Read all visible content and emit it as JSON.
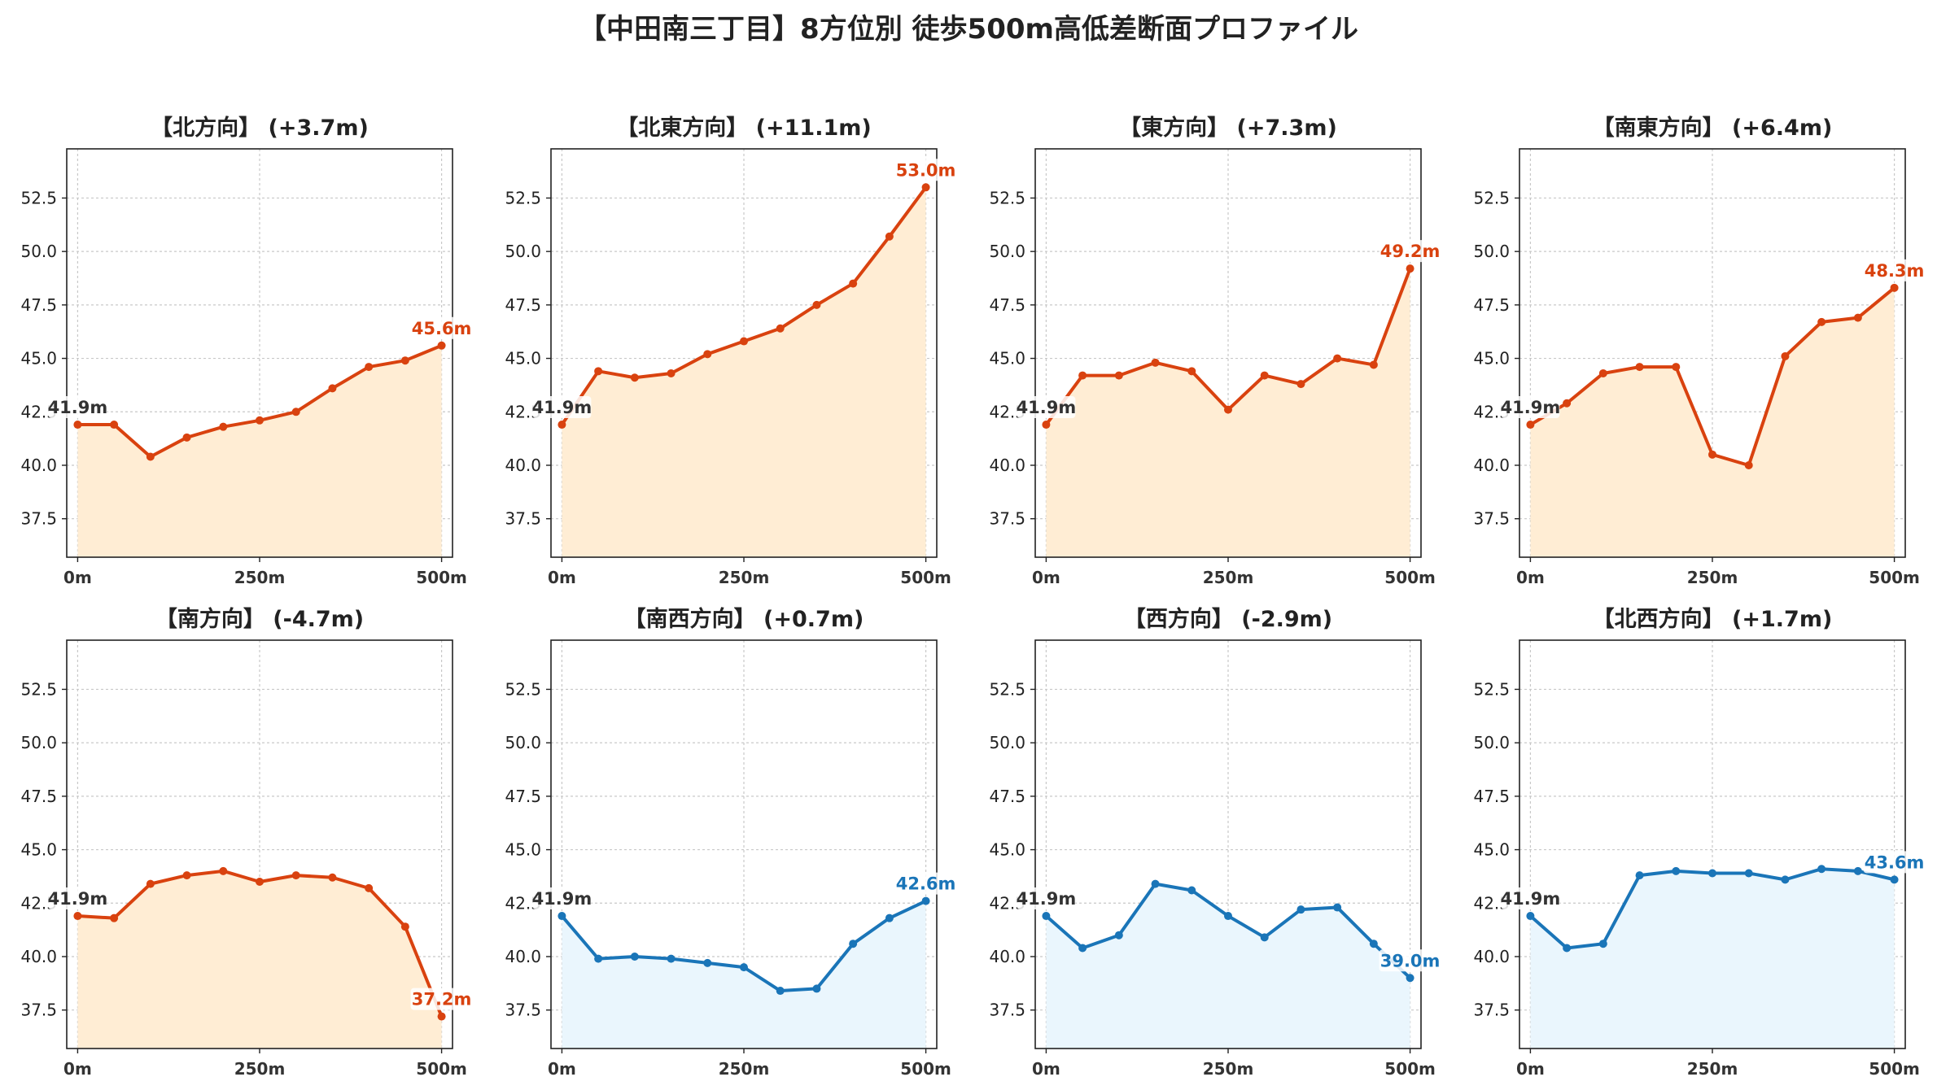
{
  "title": "【中田南三丁目】8方位別 徒歩500m高低差断面プロファイル",
  "colors": {
    "up_line": "#d9420f",
    "up_fill": "#ffedd4",
    "down_line": "#1a75b8",
    "down_fill": "#eaf6fd",
    "start_label": "#333333",
    "grid": "#c8c8c8"
  },
  "chart_data": [
    {
      "type": "line",
      "title": "【北方向】 (+3.7m)",
      "color_scheme": "up",
      "x": [
        0,
        50,
        100,
        150,
        200,
        250,
        300,
        350,
        400,
        450,
        500
      ],
      "y": [
        41.9,
        41.9,
        40.4,
        41.3,
        41.8,
        42.1,
        42.5,
        43.6,
        44.6,
        44.9,
        45.6
      ],
      "start_label": "41.9m",
      "end_label": "45.6m",
      "ylim": [
        35.7,
        54.8
      ],
      "yticks": [
        "37.5",
        "40.0",
        "42.5",
        "45.0",
        "47.5",
        "50.0",
        "52.5"
      ],
      "xticks": [
        "0m",
        "250m",
        "500m"
      ],
      "grid": true
    },
    {
      "type": "line",
      "title": "【北東方向】 (+11.1m)",
      "color_scheme": "up",
      "x": [
        0,
        50,
        100,
        150,
        200,
        250,
        300,
        350,
        400,
        450,
        500
      ],
      "y": [
        41.9,
        44.4,
        44.1,
        44.3,
        45.2,
        45.8,
        46.4,
        47.5,
        48.5,
        50.7,
        53.0
      ],
      "start_label": "41.9m",
      "end_label": "53.0m",
      "ylim": [
        35.7,
        54.8
      ],
      "yticks": [
        "37.5",
        "40.0",
        "42.5",
        "45.0",
        "47.5",
        "50.0",
        "52.5"
      ],
      "xticks": [
        "0m",
        "250m",
        "500m"
      ],
      "grid": true
    },
    {
      "type": "line",
      "title": "【東方向】 (+7.3m)",
      "color_scheme": "up",
      "x": [
        0,
        50,
        100,
        150,
        200,
        250,
        300,
        350,
        400,
        450,
        500
      ],
      "y": [
        41.9,
        44.2,
        44.2,
        44.8,
        44.4,
        42.6,
        44.2,
        43.8,
        45.0,
        44.7,
        49.2
      ],
      "start_label": "41.9m",
      "end_label": "49.2m",
      "ylim": [
        35.7,
        54.8
      ],
      "yticks": [
        "37.5",
        "40.0",
        "42.5",
        "45.0",
        "47.5",
        "50.0",
        "52.5"
      ],
      "xticks": [
        "0m",
        "250m",
        "500m"
      ],
      "grid": true
    },
    {
      "type": "line",
      "title": "【南東方向】 (+6.4m)",
      "color_scheme": "up",
      "x": [
        0,
        50,
        100,
        150,
        200,
        250,
        300,
        350,
        400,
        450,
        500
      ],
      "y": [
        41.9,
        42.9,
        44.3,
        44.6,
        44.6,
        40.5,
        40.0,
        45.1,
        46.7,
        46.9,
        48.3
      ],
      "start_label": "41.9m",
      "end_label": "48.3m",
      "ylim": [
        35.7,
        54.8
      ],
      "yticks": [
        "37.5",
        "40.0",
        "42.5",
        "45.0",
        "47.5",
        "50.0",
        "52.5"
      ],
      "xticks": [
        "0m",
        "250m",
        "500m"
      ],
      "grid": true
    },
    {
      "type": "line",
      "title": "【南方向】 (-4.7m)",
      "color_scheme": "up",
      "x": [
        0,
        50,
        100,
        150,
        200,
        250,
        300,
        350,
        400,
        450,
        500
      ],
      "y": [
        41.9,
        41.8,
        43.4,
        43.8,
        44.0,
        43.5,
        43.8,
        43.7,
        43.2,
        41.4,
        37.2
      ],
      "start_label": "41.9m",
      "end_label": "37.2m",
      "ylim": [
        35.7,
        54.8
      ],
      "yticks": [
        "37.5",
        "40.0",
        "42.5",
        "45.0",
        "47.5",
        "50.0",
        "52.5"
      ],
      "xticks": [
        "0m",
        "250m",
        "500m"
      ],
      "grid": true
    },
    {
      "type": "line",
      "title": "【南西方向】 (+0.7m)",
      "color_scheme": "down",
      "x": [
        0,
        50,
        100,
        150,
        200,
        250,
        300,
        350,
        400,
        450,
        500
      ],
      "y": [
        41.9,
        39.9,
        40.0,
        39.9,
        39.7,
        39.5,
        38.4,
        38.5,
        40.6,
        41.8,
        42.6
      ],
      "start_label": "41.9m",
      "end_label": "42.6m",
      "ylim": [
        35.7,
        54.8
      ],
      "yticks": [
        "37.5",
        "40.0",
        "42.5",
        "45.0",
        "47.5",
        "50.0",
        "52.5"
      ],
      "xticks": [
        "0m",
        "250m",
        "500m"
      ],
      "grid": true
    },
    {
      "type": "line",
      "title": "【西方向】 (-2.9m)",
      "color_scheme": "down",
      "x": [
        0,
        50,
        100,
        150,
        200,
        250,
        300,
        350,
        400,
        450,
        500
      ],
      "y": [
        41.9,
        40.4,
        41.0,
        43.4,
        43.1,
        41.9,
        40.9,
        42.2,
        42.3,
        40.6,
        39.0
      ],
      "start_label": "41.9m",
      "end_label": "39.0m",
      "ylim": [
        35.7,
        54.8
      ],
      "yticks": [
        "37.5",
        "40.0",
        "42.5",
        "45.0",
        "47.5",
        "50.0",
        "52.5"
      ],
      "xticks": [
        "0m",
        "250m",
        "500m"
      ],
      "grid": true
    },
    {
      "type": "line",
      "title": "【北西方向】 (+1.7m)",
      "color_scheme": "down",
      "x": [
        0,
        50,
        100,
        150,
        200,
        250,
        300,
        350,
        400,
        450,
        500
      ],
      "y": [
        41.9,
        40.4,
        40.6,
        43.8,
        44.0,
        43.9,
        43.9,
        43.6,
        44.1,
        44.0,
        43.6
      ],
      "start_label": "41.9m",
      "end_label": "43.6m",
      "ylim": [
        35.7,
        54.8
      ],
      "yticks": [
        "37.5",
        "40.0",
        "42.5",
        "45.0",
        "47.5",
        "50.0",
        "52.5"
      ],
      "xticks": [
        "0m",
        "250m",
        "500m"
      ],
      "grid": true
    }
  ]
}
